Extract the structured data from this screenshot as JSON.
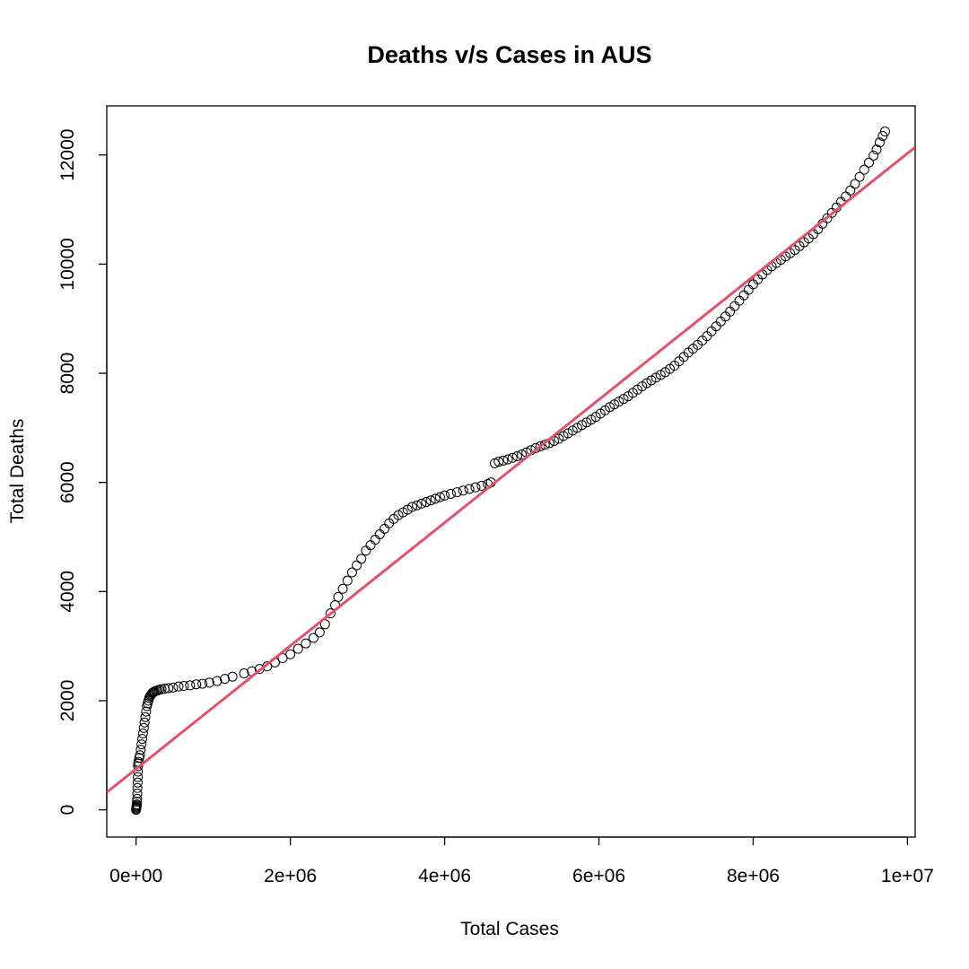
{
  "chart_data": {
    "type": "scatter",
    "title": "Deaths v/s Cases in AUS",
    "xlabel": "Total Cases",
    "ylabel": "Total Deaths",
    "xlim": [
      -380000,
      10100000
    ],
    "ylim": [
      -500,
      12900
    ],
    "x_ticks": [
      {
        "value": 0,
        "label": "0e+00"
      },
      {
        "value": 2000000,
        "label": "2e+06"
      },
      {
        "value": 4000000,
        "label": "4e+06"
      },
      {
        "value": 6000000,
        "label": "6e+06"
      },
      {
        "value": 8000000,
        "label": "8e+06"
      },
      {
        "value": 10000000,
        "label": "1e+07"
      }
    ],
    "y_ticks": [
      {
        "value": 0,
        "label": "0"
      },
      {
        "value": 2000,
        "label": "2000"
      },
      {
        "value": 4000,
        "label": "4000"
      },
      {
        "value": 6000,
        "label": "6000"
      },
      {
        "value": 8000,
        "label": "8000"
      },
      {
        "value": 10000,
        "label": "10000"
      },
      {
        "value": 12000,
        "label": "12000"
      }
    ],
    "grid": false,
    "point_color": "#000000",
    "series": [
      {
        "marker": "open-circle",
        "points": [
          [
            0,
            0
          ],
          [
            2000,
            20
          ],
          [
            4000,
            40
          ],
          [
            6000,
            60
          ],
          [
            8000,
            80
          ],
          [
            10000,
            100
          ],
          [
            12000,
            150
          ],
          [
            14000,
            200
          ],
          [
            16000,
            300
          ],
          [
            18000,
            400
          ],
          [
            20000,
            500
          ],
          [
            22000,
            600
          ],
          [
            24000,
            700
          ],
          [
            26000,
            800
          ],
          [
            28000,
            850
          ],
          [
            30000,
            880
          ],
          [
            40000,
            950
          ],
          [
            50000,
            1000
          ],
          [
            60000,
            1100
          ],
          [
            70000,
            1200
          ],
          [
            80000,
            1300
          ],
          [
            90000,
            1400
          ],
          [
            100000,
            1500
          ],
          [
            110000,
            1600
          ],
          [
            120000,
            1700
          ],
          [
            130000,
            1800
          ],
          [
            140000,
            1900
          ],
          [
            150000,
            1950
          ],
          [
            160000,
            2000
          ],
          [
            170000,
            2050
          ],
          [
            180000,
            2080
          ],
          [
            190000,
            2100
          ],
          [
            200000,
            2120
          ],
          [
            210000,
            2140
          ],
          [
            220000,
            2150
          ],
          [
            230000,
            2160
          ],
          [
            240000,
            2170
          ],
          [
            260000,
            2180
          ],
          [
            280000,
            2190
          ],
          [
            300000,
            2200
          ],
          [
            330000,
            2210
          ],
          [
            370000,
            2220
          ],
          [
            420000,
            2230
          ],
          [
            480000,
            2240
          ],
          [
            550000,
            2260
          ],
          [
            620000,
            2270
          ],
          [
            700000,
            2280
          ],
          [
            780000,
            2300
          ],
          [
            860000,
            2310
          ],
          [
            950000,
            2330
          ],
          [
            1050000,
            2360
          ],
          [
            1150000,
            2400
          ],
          [
            1250000,
            2440
          ],
          [
            1400000,
            2500
          ],
          [
            1500000,
            2540
          ],
          [
            1600000,
            2580
          ],
          [
            1700000,
            2630
          ],
          [
            1800000,
            2700
          ],
          [
            1900000,
            2780
          ],
          [
            2000000,
            2850
          ],
          [
            2100000,
            2950
          ],
          [
            2200000,
            3050
          ],
          [
            2300000,
            3150
          ],
          [
            2380000,
            3250
          ],
          [
            2450000,
            3400
          ],
          [
            2520000,
            3600
          ],
          [
            2580000,
            3750
          ],
          [
            2620000,
            3900
          ],
          [
            2680000,
            4050
          ],
          [
            2740000,
            4200
          ],
          [
            2800000,
            4350
          ],
          [
            2860000,
            4480
          ],
          [
            2920000,
            4600
          ],
          [
            2980000,
            4750
          ],
          [
            3040000,
            4850
          ],
          [
            3100000,
            4950
          ],
          [
            3160000,
            5050
          ],
          [
            3220000,
            5150
          ],
          [
            3280000,
            5250
          ],
          [
            3340000,
            5330
          ],
          [
            3400000,
            5400
          ],
          [
            3460000,
            5450
          ],
          [
            3520000,
            5500
          ],
          [
            3580000,
            5550
          ],
          [
            3640000,
            5580
          ],
          [
            3700000,
            5610
          ],
          [
            3760000,
            5640
          ],
          [
            3820000,
            5670
          ],
          [
            3880000,
            5700
          ],
          [
            3940000,
            5730
          ],
          [
            4000000,
            5760
          ],
          [
            4080000,
            5790
          ],
          [
            4160000,
            5820
          ],
          [
            4240000,
            5850
          ],
          [
            4320000,
            5880
          ],
          [
            4400000,
            5910
          ],
          [
            4480000,
            5940
          ],
          [
            4560000,
            5970
          ],
          [
            4600000,
            6000
          ],
          [
            4650000,
            6350
          ],
          [
            4700000,
            6380
          ],
          [
            4760000,
            6400
          ],
          [
            4820000,
            6420
          ],
          [
            4880000,
            6450
          ],
          [
            4940000,
            6480
          ],
          [
            5000000,
            6510
          ],
          [
            5060000,
            6550
          ],
          [
            5120000,
            6590
          ],
          [
            5180000,
            6630
          ],
          [
            5240000,
            6660
          ],
          [
            5300000,
            6690
          ],
          [
            5360000,
            6720
          ],
          [
            5420000,
            6760
          ],
          [
            5480000,
            6800
          ],
          [
            5540000,
            6850
          ],
          [
            5600000,
            6900
          ],
          [
            5660000,
            6950
          ],
          [
            5720000,
            7000
          ],
          [
            5780000,
            7050
          ],
          [
            5840000,
            7100
          ],
          [
            5900000,
            7150
          ],
          [
            5960000,
            7200
          ],
          [
            6020000,
            7260
          ],
          [
            6080000,
            7320
          ],
          [
            6140000,
            7380
          ],
          [
            6200000,
            7430
          ],
          [
            6260000,
            7480
          ],
          [
            6320000,
            7530
          ],
          [
            6380000,
            7580
          ],
          [
            6440000,
            7640
          ],
          [
            6500000,
            7700
          ],
          [
            6560000,
            7760
          ],
          [
            6620000,
            7820
          ],
          [
            6680000,
            7870
          ],
          [
            6740000,
            7920
          ],
          [
            6800000,
            7970
          ],
          [
            6860000,
            8020
          ],
          [
            6920000,
            8080
          ],
          [
            6980000,
            8140
          ],
          [
            7040000,
            8220
          ],
          [
            7100000,
            8300
          ],
          [
            7160000,
            8380
          ],
          [
            7220000,
            8450
          ],
          [
            7280000,
            8520
          ],
          [
            7340000,
            8600
          ],
          [
            7400000,
            8680
          ],
          [
            7460000,
            8770
          ],
          [
            7520000,
            8860
          ],
          [
            7580000,
            8950
          ],
          [
            7640000,
            9040
          ],
          [
            7700000,
            9130
          ],
          [
            7760000,
            9230
          ],
          [
            7820000,
            9330
          ],
          [
            7880000,
            9430
          ],
          [
            7940000,
            9530
          ],
          [
            8000000,
            9630
          ],
          [
            8060000,
            9720
          ],
          [
            8120000,
            9810
          ],
          [
            8180000,
            9890
          ],
          [
            8240000,
            9960
          ],
          [
            8300000,
            10020
          ],
          [
            8360000,
            10080
          ],
          [
            8420000,
            10140
          ],
          [
            8480000,
            10200
          ],
          [
            8540000,
            10260
          ],
          [
            8600000,
            10330
          ],
          [
            8660000,
            10400
          ],
          [
            8720000,
            10470
          ],
          [
            8780000,
            10550
          ],
          [
            8840000,
            10640
          ],
          [
            8900000,
            10740
          ],
          [
            8960000,
            10840
          ],
          [
            9020000,
            10940
          ],
          [
            9080000,
            11040
          ],
          [
            9140000,
            11140
          ],
          [
            9200000,
            11240
          ],
          [
            9260000,
            11350
          ],
          [
            9320000,
            11470
          ],
          [
            9380000,
            11600
          ],
          [
            9440000,
            11730
          ],
          [
            9500000,
            11860
          ],
          [
            9560000,
            11990
          ],
          [
            9600000,
            12100
          ],
          [
            9640000,
            12230
          ],
          [
            9680000,
            12350
          ],
          [
            9710000,
            12430
          ]
        ]
      }
    ],
    "fit_line": {
      "color": "#df536b",
      "intercept": 750,
      "slope": 0.001128
    }
  }
}
